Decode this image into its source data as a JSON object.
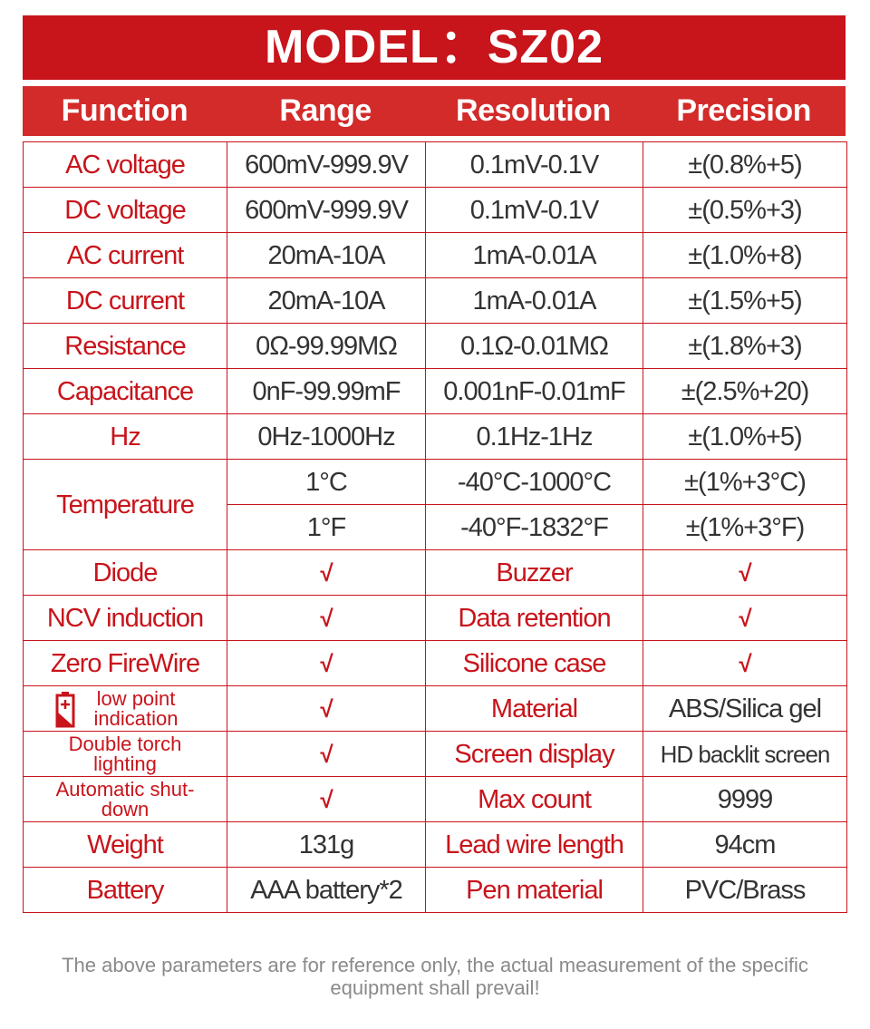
{
  "header": {
    "title": "MODEL：SZ02"
  },
  "table": {
    "columns": [
      "Function",
      "Range",
      "Resolution",
      "Precision"
    ],
    "rows": [
      [
        "AC voltage",
        "600mV-999.9V",
        "0.1mV-0.1V",
        "±(0.8%+5)"
      ],
      [
        "DC voltage",
        "600mV-999.9V",
        "0.1mV-0.1V",
        "±(0.5%+3)"
      ],
      [
        "AC current",
        "20mA-10A",
        "1mA-0.01A",
        "±(1.0%+8)"
      ],
      [
        "DC current",
        "20mA-10A",
        "1mA-0.01A",
        "±(1.5%+5)"
      ],
      [
        "Resistance",
        "0Ω-99.99MΩ",
        "0.1Ω-0.01MΩ",
        "±(1.8%+3)"
      ],
      [
        "Capacitance",
        "0nF-99.99mF",
        "0.001nF-0.01mF",
        "±(2.5%+20)"
      ],
      [
        "Hz",
        "0Hz-1000Hz",
        "0.1Hz-1Hz",
        "±(1.0%+5)"
      ],
      [
        "Temperature",
        "1°C",
        "-40°C-1000°C",
        "±(1%+3°C)"
      ],
      [
        "1°F",
        "-40°F-1832°F",
        "±(1%+3°F)"
      ],
      [
        "Diode",
        "√",
        "Buzzer",
        "√"
      ],
      [
        "NCV induction",
        "√",
        "Data retention",
        "√"
      ],
      [
        "Zero FireWire",
        "√",
        "Silicone case",
        "√"
      ],
      [
        "low point indication",
        "√",
        "Material",
        "ABS/Silica gel"
      ],
      [
        "Double torch lighting",
        "√",
        "Screen display",
        "HD backlit screen"
      ],
      [
        "Automatic shut-down",
        "√",
        "Max count",
        "9999"
      ],
      [
        "Weight",
        "131g",
        "Lead wire length",
        "94cm"
      ],
      [
        "Battery",
        "AAA battery*2",
        "Pen material",
        "PVC/Brass"
      ]
    ]
  },
  "footer": {
    "note": "The above parameters are for reference only, the actual measurement of the specific equipment shall prevail!"
  }
}
